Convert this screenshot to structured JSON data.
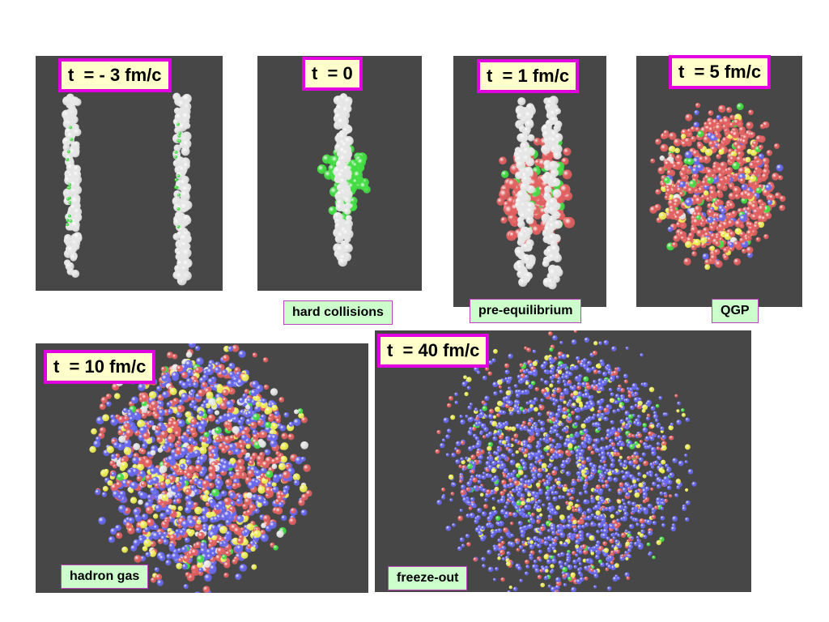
{
  "panels": [
    {
      "time_label": "t  = - 3 fm/c",
      "caption": ""
    },
    {
      "time_label": "t  = 0",
      "caption": "hard collisions"
    },
    {
      "time_label": "t  = 1 fm/c",
      "caption": "pre-equilibrium"
    },
    {
      "time_label": "t  = 5 fm/c",
      "caption": "QGP"
    },
    {
      "time_label": "t  = 10 fm/c",
      "caption": "hadron gas"
    },
    {
      "time_label": "t  = 40 fm/c",
      "caption": "freeze-out"
    }
  ],
  "colors": {
    "panel_background": "#474747",
    "nucleon": "#e6e6e6",
    "parton_green": "#44dd44",
    "quark_red": "#e26060",
    "hadron_blue": "#6868ee",
    "hadron_yellow": "#eeee55",
    "label_border": "#e000e0",
    "label_fill": "#ffffcc",
    "caption_fill": "#ccffcc"
  }
}
